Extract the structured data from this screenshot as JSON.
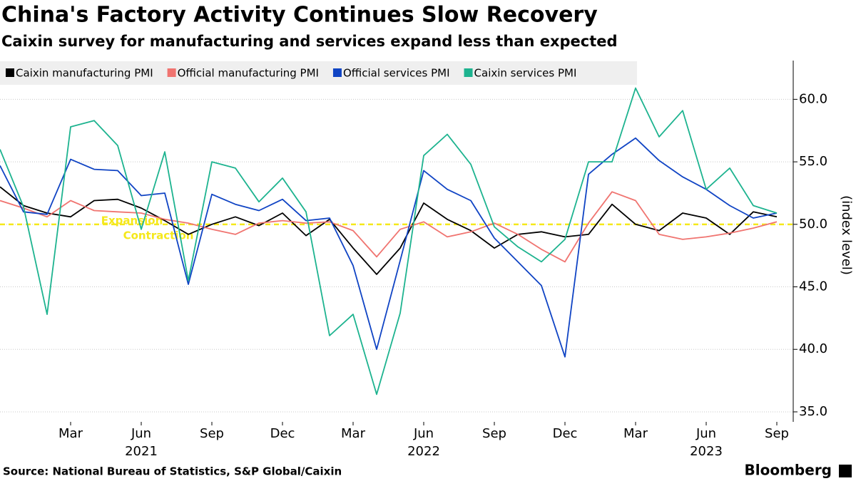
{
  "chart_data": {
    "type": "line",
    "title": "China's Factory Activity Continues Slow Recovery",
    "subtitle": "Caixin survey for manufacturing and services expand less than expected",
    "y_axis_label": "(index level)",
    "source": "Source: National Bureau of Statistics, S&P Global/Caixin",
    "brand": "Bloomberg",
    "categories": [
      null,
      null,
      null,
      "Mar",
      null,
      null,
      "Jun",
      null,
      null,
      "Sep",
      null,
      null,
      "Dec",
      null,
      null,
      "Mar",
      null,
      null,
      "Jun",
      null,
      null,
      "Sep",
      null,
      null,
      "Dec",
      null,
      null,
      "Mar",
      null,
      null,
      "Jun",
      null,
      null,
      "Sep"
    ],
    "years": [
      "2021",
      "2022",
      "2023"
    ],
    "ylim": [
      34.2,
      63.1
    ],
    "yticks": [
      {
        "value": 35,
        "label": "35.0"
      },
      {
        "value": 40,
        "label": "40.0"
      },
      {
        "value": 45,
        "label": "45.0"
      },
      {
        "value": 50,
        "label": "50.0"
      },
      {
        "value": 55,
        "label": "55.0"
      },
      {
        "value": 60,
        "label": "60.0"
      }
    ],
    "grid": true,
    "threshold": {
      "value": 50,
      "color": "#f5e81b",
      "above_label": "Expansion",
      "below_label": "Contraction"
    },
    "series": [
      {
        "name": "Caixin manufacturing PMI",
        "color": "#000000",
        "values": [
          53.0,
          51.5,
          50.9,
          50.6,
          51.9,
          52.0,
          51.3,
          50.3,
          49.2,
          50.0,
          50.6,
          49.9,
          50.9,
          49.1,
          50.4,
          48.1,
          46.0,
          48.1,
          51.7,
          50.4,
          49.5,
          48.1,
          49.2,
          49.4,
          49.0,
          49.2,
          51.6,
          50.0,
          49.5,
          50.9,
          50.5,
          49.2,
          51.0,
          50.6
        ]
      },
      {
        "name": "Official manufacturing PMI",
        "color": "#f07470",
        "values": [
          51.9,
          51.3,
          50.6,
          51.9,
          51.1,
          51.0,
          50.9,
          50.4,
          50.1,
          49.6,
          49.2,
          50.1,
          50.3,
          50.1,
          50.2,
          49.5,
          47.4,
          49.6,
          50.2,
          49.0,
          49.4,
          50.1,
          49.2,
          48.0,
          47.0,
          50.1,
          52.6,
          51.9,
          49.2,
          48.8,
          49.0,
          49.3,
          49.7,
          50.2
        ]
      },
      {
        "name": "Official services PMI",
        "color": "#1044c4",
        "values": [
          54.7,
          51.0,
          50.8,
          55.2,
          54.4,
          54.3,
          52.3,
          52.5,
          45.2,
          52.4,
          51.6,
          51.1,
          52.0,
          50.3,
          50.5,
          46.7,
          40.0,
          47.1,
          54.3,
          52.8,
          51.9,
          48.9,
          47.0,
          45.1,
          39.4,
          54.0,
          55.6,
          56.9,
          55.1,
          53.8,
          52.8,
          51.5,
          50.5,
          50.9
        ]
      },
      {
        "name": "Caixin services PMI",
        "color": "#1db38f",
        "values": [
          56.0,
          51.4,
          42.8,
          57.8,
          58.3,
          56.3,
          49.6,
          55.8,
          45.5,
          55.0,
          54.5,
          51.8,
          53.7,
          51.0,
          41.1,
          42.8,
          36.4,
          42.9,
          55.5,
          57.2,
          54.8,
          49.8,
          48.2,
          47.0,
          48.8,
          55.0,
          55.0,
          60.9,
          57.0,
          59.1,
          52.8,
          54.5,
          51.5,
          50.9
        ]
      }
    ]
  }
}
